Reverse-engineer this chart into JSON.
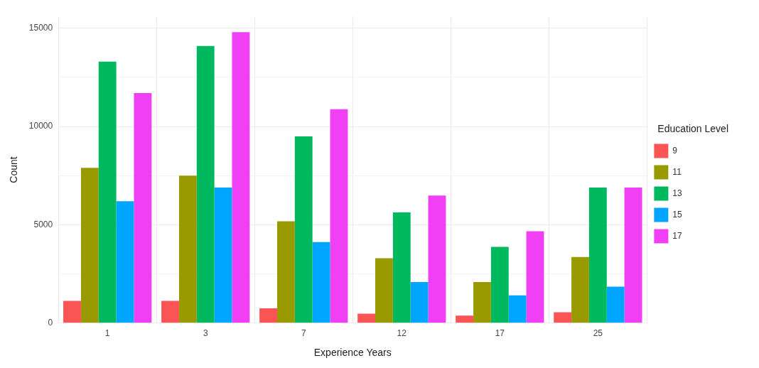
{
  "chart_data": {
    "type": "bar",
    "xlabel": "Experience Years",
    "ylabel": "Count",
    "legend_title": "Education Level",
    "categories": [
      "1",
      "3",
      "7",
      "12",
      "17",
      "25"
    ],
    "series": [
      {
        "name": "9",
        "color": "#fb5454",
        "values": [
          1130,
          1130,
          750,
          480,
          380,
          550
        ]
      },
      {
        "name": "11",
        "color": "#999900",
        "values": [
          7900,
          7500,
          5180,
          3300,
          2090,
          3360
        ]
      },
      {
        "name": "13",
        "color": "#00b95f",
        "values": [
          13300,
          14100,
          9500,
          5630,
          3880,
          6900
        ]
      },
      {
        "name": "15",
        "color": "#00a5ff",
        "values": [
          6200,
          6900,
          4120,
          2090,
          1410,
          1850
        ]
      },
      {
        "name": "17",
        "color": "#f03ff5",
        "values": [
          11700,
          14800,
          10880,
          6490,
          4670,
          6900
        ]
      }
    ],
    "ylim": [
      0,
      15600
    ],
    "yticks": [
      0,
      {
        "value": 2500,
        "label": null
      },
      5000,
      {
        "value": 7500,
        "label": null
      },
      10000,
      {
        "value": 12500,
        "label": null
      },
      15000
    ],
    "grid": true,
    "legend": "right"
  }
}
